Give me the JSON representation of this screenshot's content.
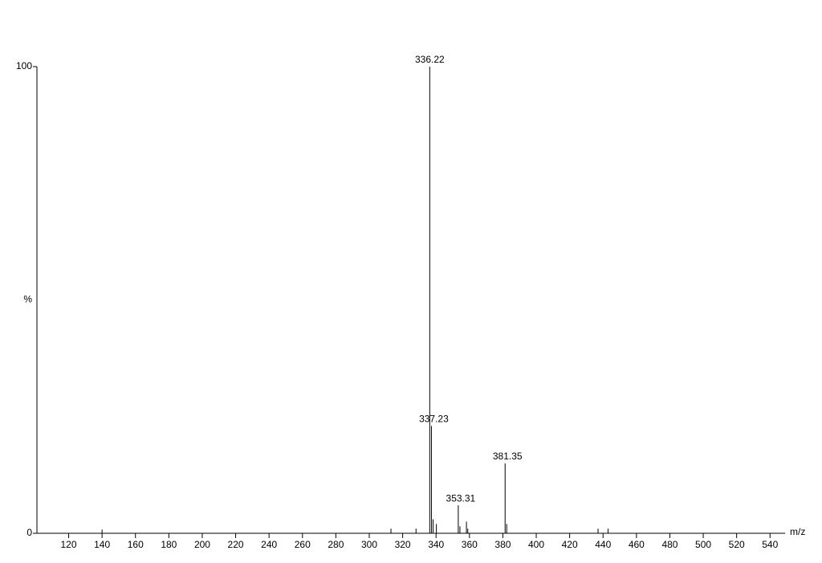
{
  "chart_data": {
    "type": "spectrum",
    "x_label": "m/z",
    "y_label": "%",
    "xlim": [
      101,
      549
    ],
    "ylim": [
      0,
      100
    ],
    "xticks": [
      120,
      140,
      160,
      180,
      200,
      220,
      240,
      260,
      280,
      300,
      320,
      340,
      360,
      380,
      400,
      420,
      440,
      460,
      480,
      500,
      520,
      540
    ],
    "yticks": [
      0,
      100
    ],
    "color": "#000000",
    "series": [
      {
        "labeled": true,
        "x": [
          336.22,
          337.23,
          353.31,
          381.35
        ],
        "values": [
          100,
          23,
          6,
          15
        ]
      },
      {
        "labeled": false,
        "x": [
          140,
          313,
          328,
          338.2,
          340.2,
          354.3,
          358.2,
          359,
          382.3,
          437,
          443
        ],
        "values": [
          0.8,
          1,
          1,
          3,
          2,
          1.5,
          2.5,
          1,
          2,
          1,
          1
        ]
      }
    ]
  }
}
